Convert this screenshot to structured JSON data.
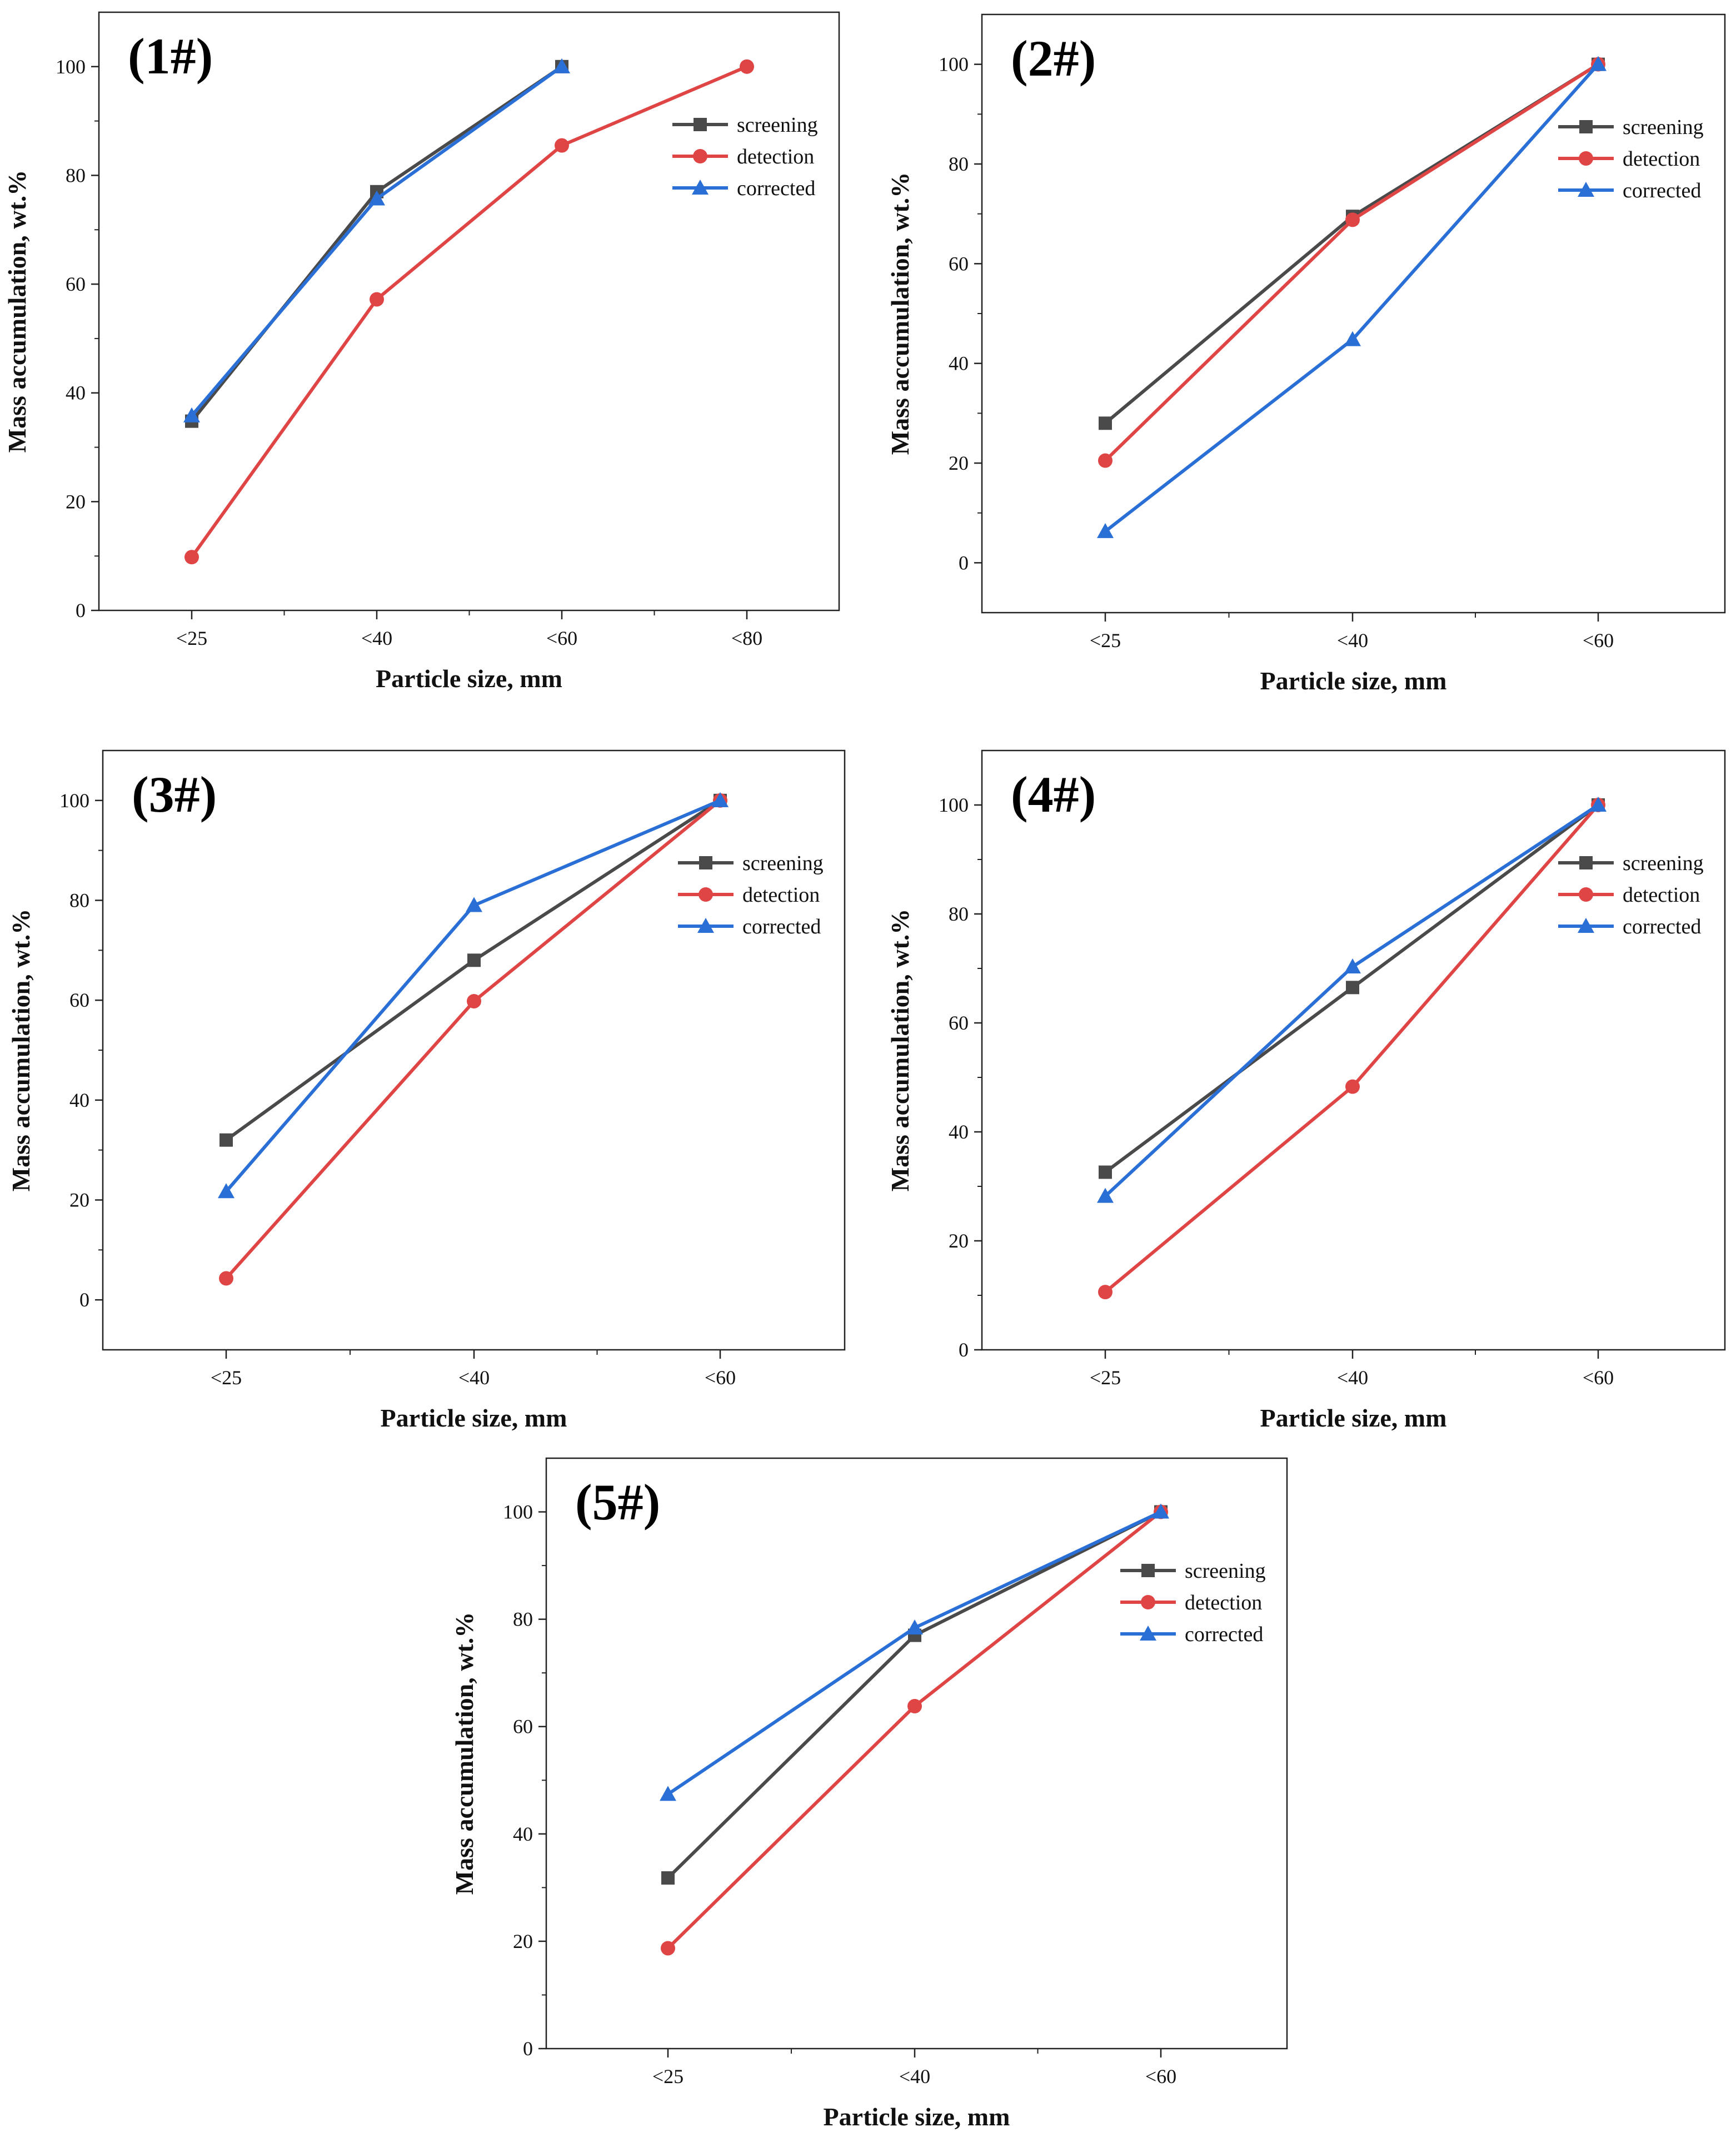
{
  "series_styles": [
    {
      "name": "screening",
      "color": "#4a4a4a",
      "marker": "square"
    },
    {
      "name": "detection",
      "color": "#e04545",
      "marker": "circle"
    },
    {
      "name": "corrected",
      "color": "#2a6fd6",
      "marker": "triangle"
    }
  ],
  "chart_data": [
    {
      "type": "line",
      "title": "(1#)",
      "xlabel": "Particle size, mm",
      "ylabel": "Mass accumulation, wt.%",
      "categories": [
        "<25",
        "<40",
        "<60",
        "<80"
      ],
      "ylim": [
        0,
        110
      ],
      "yticks": [
        0,
        20,
        40,
        60,
        80,
        100
      ],
      "legend": "top-right",
      "series": [
        {
          "name": "screening",
          "values": [
            34.8,
            77,
            100,
            null
          ]
        },
        {
          "name": "detection",
          "values": [
            9.8,
            57.2,
            85.5,
            100
          ]
        },
        {
          "name": "corrected",
          "values": [
            35.8,
            75.7,
            100,
            null
          ]
        }
      ]
    },
    {
      "type": "line",
      "title": "(2#)",
      "xlabel": "Particle size, mm",
      "ylabel": "Mass accumulation, wt.%",
      "categories": [
        "<25",
        "<40",
        "<60"
      ],
      "ylim": [
        -10,
        110
      ],
      "yticks": [
        0,
        20,
        40,
        60,
        80,
        100
      ],
      "legend": "top-right",
      "series": [
        {
          "name": "screening",
          "values": [
            28,
            69.5,
            100
          ]
        },
        {
          "name": "detection",
          "values": [
            20.5,
            68.8,
            100
          ]
        },
        {
          "name": "corrected",
          "values": [
            6.3,
            44.8,
            100
          ]
        }
      ]
    },
    {
      "type": "line",
      "title": "(3#)",
      "xlabel": "Particle size, mm",
      "ylabel": "Mass accumulation, wt.%",
      "categories": [
        "<25",
        "<40",
        "<60"
      ],
      "ylim": [
        -10,
        110
      ],
      "yticks": [
        0,
        20,
        40,
        60,
        80,
        100
      ],
      "legend": "top-right",
      "series": [
        {
          "name": "screening",
          "values": [
            32,
            68,
            100
          ]
        },
        {
          "name": "detection",
          "values": [
            4.3,
            59.8,
            100
          ]
        },
        {
          "name": "corrected",
          "values": [
            21.7,
            79,
            100
          ]
        }
      ]
    },
    {
      "type": "line",
      "title": "(4#)",
      "xlabel": "Particle size, mm",
      "ylabel": "Mass accumulation, wt.%",
      "categories": [
        "<25",
        "<40",
        "<60"
      ],
      "ylim": [
        0,
        110
      ],
      "yticks": [
        0,
        20,
        40,
        60,
        80,
        100
      ],
      "legend": "top-right",
      "series": [
        {
          "name": "screening",
          "values": [
            32.6,
            66.5,
            100
          ]
        },
        {
          "name": "detection",
          "values": [
            10.6,
            48.3,
            100
          ]
        },
        {
          "name": "corrected",
          "values": [
            28.2,
            70.3,
            100
          ]
        }
      ]
    },
    {
      "type": "line",
      "title": "(5#)",
      "xlabel": "Particle size, mm",
      "ylabel": "Mass accumulation, wt.%",
      "categories": [
        "<25",
        "<40",
        "<60"
      ],
      "ylim": [
        0,
        110
      ],
      "yticks": [
        0,
        20,
        40,
        60,
        80,
        100
      ],
      "legend": "top-right",
      "series": [
        {
          "name": "screening",
          "values": [
            31.8,
            77,
            100
          ]
        },
        {
          "name": "detection",
          "values": [
            18.7,
            63.8,
            100
          ]
        },
        {
          "name": "corrected",
          "values": [
            47.4,
            78.4,
            100
          ]
        }
      ]
    }
  ]
}
